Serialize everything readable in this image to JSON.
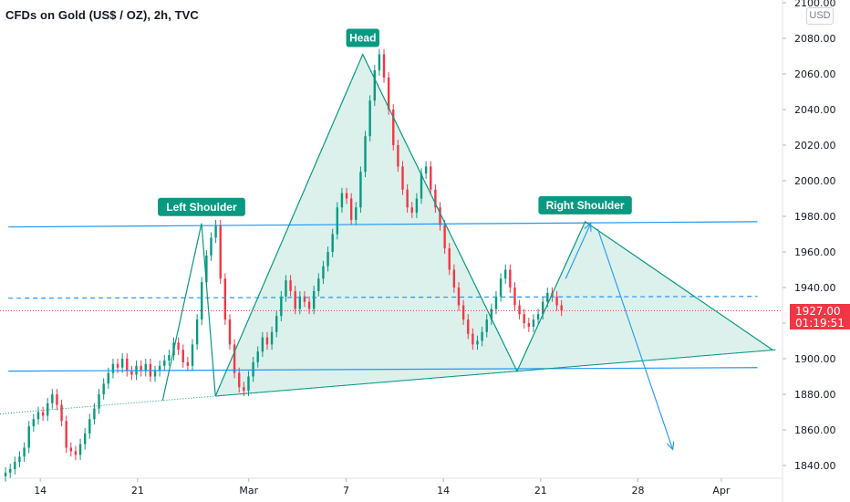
{
  "header": {
    "title": "CFDs on Gold (US$ / OZ), 2h, TVC",
    "currency_button": "USD"
  },
  "last_price": {
    "value": "1927.00",
    "countdown": "01:19:51"
  },
  "colors": {
    "up": "#089981",
    "down": "#f23645",
    "pattern_line": "#089981",
    "pattern_fill": "#bfe5dc",
    "trend_line": "#2196f3",
    "last_price": "#f23645",
    "axis": "#131722"
  },
  "chart_data": {
    "type": "candlestick",
    "title": "CFDs on Gold (US$ / OZ), 2h, TVC",
    "currency": "USD",
    "ylim": [
      1835,
      2100
    ],
    "yticks": [
      "1840.00",
      "1860.00",
      "1880.00",
      "1900.00",
      "1920.00",
      "1940.00",
      "1960.00",
      "1980.00",
      "2000.00",
      "2020.00",
      "2040.00",
      "2060.00",
      "2080.00",
      "2100.00"
    ],
    "xticks": [
      "14",
      "21",
      "Mar",
      "7",
      "14",
      "21",
      "28",
      "Apr"
    ],
    "x_tick_days": [
      14,
      21,
      29,
      36,
      43,
      50,
      57,
      63
    ],
    "x_range_days": [
      11.1,
      67.4
    ],
    "last_price": 1927.0,
    "closes": [
      1836,
      1838,
      1842,
      1845,
      1850,
      1862,
      1866,
      1870,
      1868,
      1875,
      1880,
      1874,
      1865,
      1850,
      1848,
      1846,
      1852,
      1858,
      1866,
      1872,
      1880,
      1886,
      1892,
      1897,
      1895,
      1900,
      1893,
      1891,
      1896,
      1893,
      1897,
      1890,
      1893,
      1896,
      1899,
      1902,
      1909,
      1905,
      1898,
      1896,
      1908,
      1922,
      1943,
      1958,
      1968,
      1975,
      1945,
      1922,
      1908,
      1892,
      1884,
      1882,
      1890,
      1898,
      1904,
      1912,
      1908,
      1915,
      1924,
      1935,
      1944,
      1938,
      1928,
      1935,
      1932,
      1928,
      1938,
      1945,
      1952,
      1960,
      1970,
      1985,
      1993,
      1990,
      1978,
      1985,
      2005,
      2025,
      2045,
      2062,
      2071,
      2058,
      2040,
      2020,
      2008,
      1995,
      1985,
      1982,
      1990,
      2004,
      2008,
      1995,
      1985,
      1975,
      1962,
      1950,
      1940,
      1930,
      1922,
      1914,
      1908,
      1910,
      1915,
      1922,
      1928,
      1935,
      1945,
      1950,
      1940,
      1930,
      1925,
      1920,
      1918,
      1922,
      1925,
      1932,
      1937,
      1935,
      1930,
      1927
    ],
    "annotations": [
      "Left Shoulder",
      "Head",
      "Right Shoulder"
    ],
    "pattern_points": [
      {
        "label": "Left Shoulder",
        "day": 25.6,
        "price": 1976
      },
      {
        "label": "Head",
        "day": 37.2,
        "price": 2071
      },
      {
        "label": "Right Shoulder",
        "day": 53.2,
        "price": 1977
      }
    ],
    "neckline": {
      "start": [
        26.6,
        1879
      ],
      "end": [
        66.9,
        1905
      ]
    },
    "resistance": {
      "start": [
        11.7,
        1974
      ],
      "end": [
        65.6,
        1977
      ],
      "price": 1975
    },
    "support": {
      "start": [
        11.7,
        1893
      ],
      "end": [
        65.6,
        1895
      ],
      "price": 1894
    },
    "dashed_level": 1935,
    "arrow_up": {
      "from": [
        51.8,
        1945
      ],
      "to": [
        53.6,
        1976
      ]
    },
    "arrow_down": {
      "from": [
        54.1,
        1973
      ],
      "to": [
        59.5,
        1849
      ]
    }
  }
}
